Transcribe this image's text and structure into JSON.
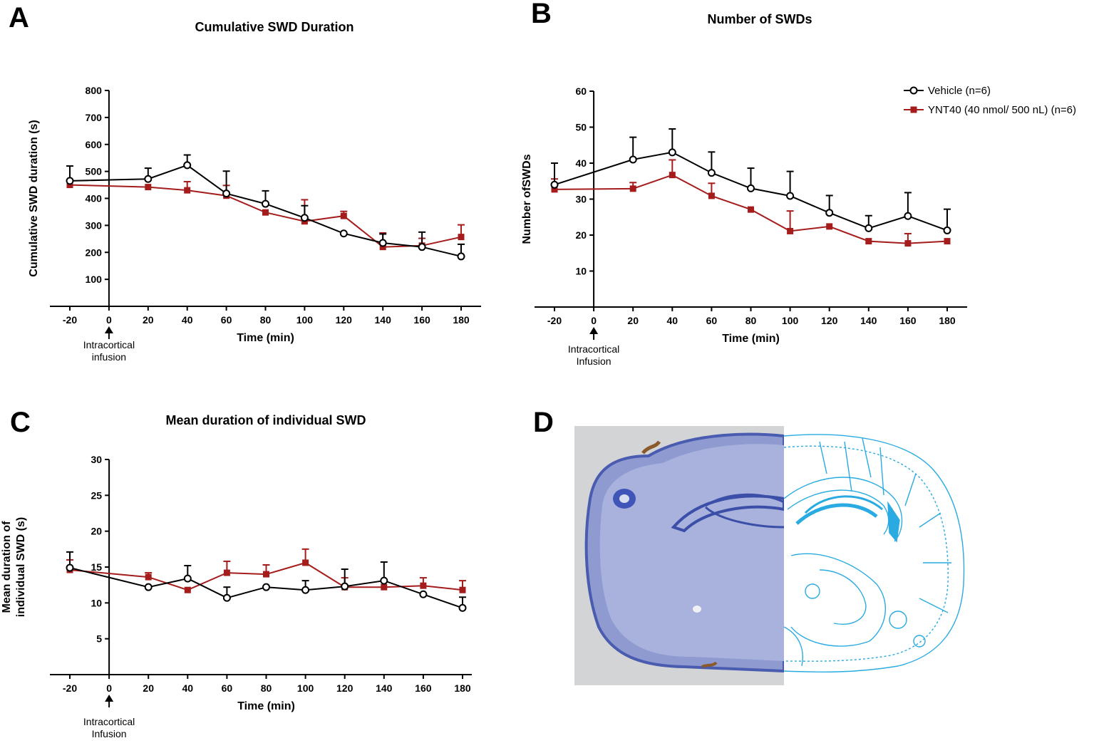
{
  "colors": {
    "vehicle": "#000000",
    "ynt40": "#a51c1c",
    "atlas": "#29abe2",
    "tissue": "#4a5cb0"
  },
  "panel_d": {
    "letter": "D"
  },
  "chart_data": [
    {
      "id": "A",
      "letter": "A",
      "type": "line",
      "title": "Cumulative SWD Duration",
      "xlabel": "Time (min)",
      "ylabel": "Cumulative SWD duration (s)",
      "annotation": [
        "Intracortical",
        "infusion"
      ],
      "x": [
        -20,
        20,
        40,
        60,
        80,
        100,
        120,
        140,
        160,
        180
      ],
      "xticks": [
        "-20",
        "0",
        "20",
        "40",
        "60",
        "80",
        "100",
        "120",
        "140",
        "160",
        "180"
      ],
      "yticks": [
        "100",
        "200",
        "300",
        "400",
        "500",
        "600",
        "700",
        "800"
      ],
      "ylim": [
        0,
        800
      ],
      "series": [
        {
          "name": "Vehicle",
          "values": [
            465,
            472,
            523,
            418,
            380,
            328,
            270,
            235,
            220,
            185
          ],
          "errors": [
            55,
            40,
            38,
            83,
            48,
            45,
            0,
            33,
            55,
            45
          ]
        },
        {
          "name": "YNT40",
          "values": [
            450,
            442,
            430,
            410,
            348,
            315,
            335,
            220,
            225,
            257
          ],
          "errors": [
            0,
            0,
            32,
            38,
            0,
            80,
            17,
            52,
            27,
            45
          ]
        }
      ]
    },
    {
      "id": "B",
      "letter": "B",
      "type": "line",
      "title": "Number of SWDs",
      "xlabel": "Time (min)",
      "ylabel": "Number ofSWDs",
      "annotation": [
        "Intracortical",
        "Infusion"
      ],
      "x": [
        -20,
        20,
        40,
        60,
        80,
        100,
        120,
        140,
        160,
        180
      ],
      "xticks": [
        "-20",
        "0",
        "20",
        "40",
        "60",
        "80",
        "100",
        "120",
        "140",
        "160",
        "180"
      ],
      "yticks": [
        "10",
        "20",
        "30",
        "40",
        "50",
        "60"
      ],
      "ylim": [
        0,
        60
      ],
      "legend": [
        {
          "label": "Vehicle (n=6)"
        },
        {
          "label": "YNT40 (40 nmol/ 500 nL) (n=6)"
        }
      ],
      "series": [
        {
          "name": "Vehicle (n=6)",
          "values": [
            34,
            41,
            43,
            37.3,
            33,
            30.9,
            26.2,
            21.9,
            25.3,
            21.3
          ],
          "errors": [
            6,
            6.2,
            6.5,
            5.8,
            5.6,
            6.8,
            4.8,
            3.5,
            6.5,
            5.9
          ]
        },
        {
          "name": "YNT40 (40 nmol/ 500 nL) (n=6)",
          "values": [
            32.7,
            32.9,
            36.7,
            30.9,
            27.1,
            21.1,
            22.4,
            18.3,
            17.7,
            18.3
          ],
          "errors": [
            2.9,
            1.7,
            4.2,
            3.5,
            0,
            5.6,
            0,
            0,
            2.7,
            0
          ]
        }
      ]
    },
    {
      "id": "C",
      "letter": "C",
      "type": "line",
      "title": "Mean duration of individual SWD",
      "xlabel": "Time (min)",
      "ylabel": [
        "Mean duration of",
        "individual SWD (s)"
      ],
      "annotation": [
        "Intracortical",
        "Infusion"
      ],
      "x": [
        -20,
        20,
        40,
        60,
        80,
        100,
        120,
        140,
        160,
        180
      ],
      "xticks": [
        "-20",
        "0",
        "20",
        "40",
        "60",
        "80",
        "100",
        "120",
        "140",
        "160",
        "180"
      ],
      "yticks": [
        "5",
        "10",
        "15",
        "20",
        "25",
        "30"
      ],
      "ylim": [
        0,
        30
      ],
      "series": [
        {
          "name": "Vehicle",
          "values": [
            14.9,
            12.2,
            13.4,
            10.7,
            12.2,
            11.8,
            12.3,
            13.1,
            11.2,
            9.3
          ],
          "errors": [
            2.2,
            0,
            1.8,
            1.5,
            0,
            1.3,
            2.4,
            2.6,
            0,
            1.5
          ]
        },
        {
          "name": "YNT40",
          "values": [
            14.6,
            13.6,
            11.8,
            14.2,
            14,
            15.6,
            12.2,
            12.2,
            12.4,
            11.8
          ],
          "errors": [
            1.4,
            0.6,
            0,
            1.6,
            1.3,
            1.9,
            1.3,
            0,
            1.1,
            1.3
          ]
        }
      ]
    }
  ]
}
